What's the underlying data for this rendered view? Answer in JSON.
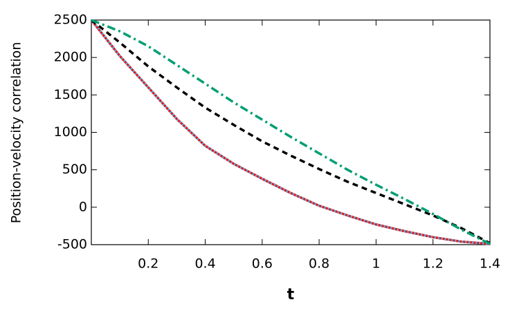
{
  "chart_data": {
    "type": "line",
    "x_label": "t",
    "y_label": "Position-velocity correlation",
    "x": [
      0,
      0.1,
      0.2,
      0.3,
      0.4,
      0.5,
      0.6,
      0.7,
      0.8,
      0.9,
      1.0,
      1.1,
      1.2,
      1.3,
      1.4
    ],
    "series": [
      {
        "color": "#e41a1c",
        "style": "solid",
        "values": [
          2500,
          2020,
          1600,
          1180,
          820,
          580,
          380,
          190,
          20,
          -110,
          -230,
          -320,
          -400,
          -460,
          -490
        ]
      },
      {
        "color": "#56b4e9",
        "style": "dotted",
        "values": [
          2500,
          2020,
          1600,
          1180,
          820,
          580,
          380,
          190,
          20,
          -110,
          -230,
          -320,
          -400,
          -460,
          -490
        ]
      },
      {
        "color": "#000000",
        "style": "dashed",
        "values": [
          2500,
          2200,
          1880,
          1600,
          1330,
          1100,
          880,
          690,
          510,
          340,
          190,
          40,
          -110,
          -280,
          -480
        ]
      },
      {
        "color": "#009e73",
        "style": "dashdot",
        "values": [
          2500,
          2350,
          2150,
          1900,
          1650,
          1400,
          1170,
          940,
          720,
          500,
          300,
          110,
          -90,
          -300,
          -490
        ]
      }
    ],
    "xlim": [
      0,
      1.4
    ],
    "xticks": [
      0.2,
      0.4,
      0.6,
      0.8,
      1,
      1.2,
      1.4
    ],
    "ylim": [
      -500,
      2500
    ],
    "yticks": [
      -500,
      0,
      500,
      1000,
      1500,
      2000,
      2500
    ]
  }
}
